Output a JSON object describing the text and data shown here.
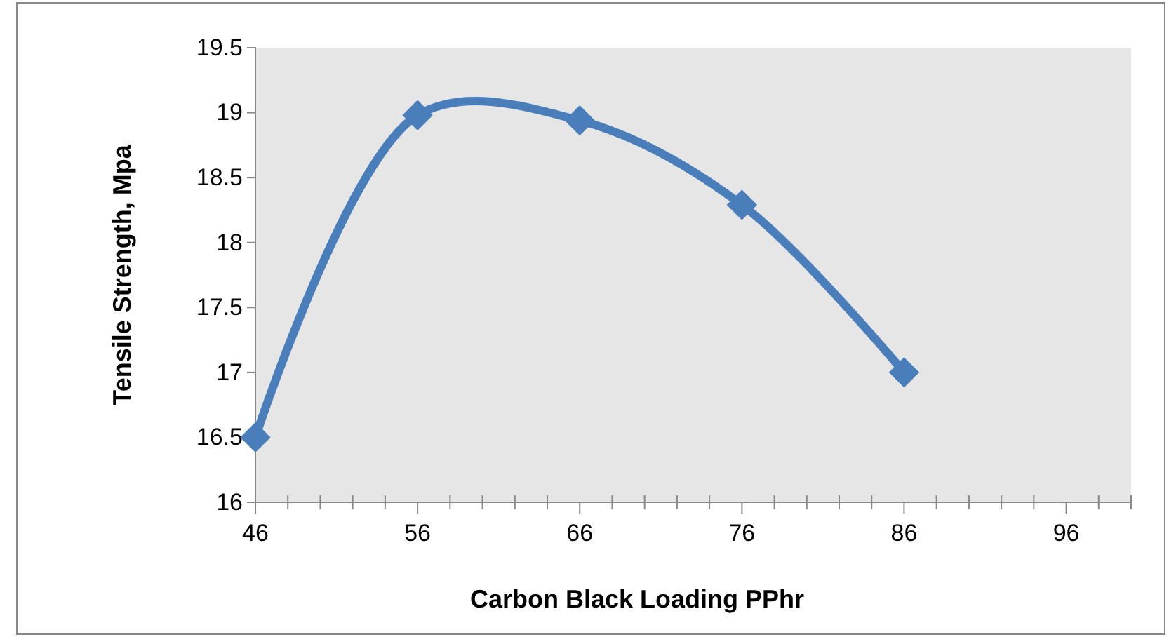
{
  "chart_data": {
    "type": "line",
    "xlabel": "Carbon Black Loading PPhr",
    "ylabel": "Tensile Strength, Mpa",
    "x": [
      46,
      56,
      66,
      76,
      86
    ],
    "series": [
      {
        "color": "#4a7ebb",
        "values": [
          16.5,
          18.98,
          18.94,
          18.29,
          17.0
        ]
      }
    ],
    "xlim": [
      46,
      100
    ],
    "xticks": [
      46,
      {
        "value": 48,
        "label": null
      },
      {
        "value": 50,
        "label": null
      },
      {
        "value": 52,
        "label": null
      },
      {
        "value": 54,
        "label": null
      },
      56,
      {
        "value": 58,
        "label": null
      },
      {
        "value": 60,
        "label": null
      },
      {
        "value": 62,
        "label": null
      },
      {
        "value": 64,
        "label": null
      },
      66,
      {
        "value": 68,
        "label": null
      },
      {
        "value": 70,
        "label": null
      },
      {
        "value": 72,
        "label": null
      },
      {
        "value": 74,
        "label": null
      },
      76,
      {
        "value": 78,
        "label": null
      },
      {
        "value": 80,
        "label": null
      },
      {
        "value": 82,
        "label": null
      },
      {
        "value": 84,
        "label": null
      },
      86,
      {
        "value": 88,
        "label": null
      },
      {
        "value": 90,
        "label": null
      },
      {
        "value": 92,
        "label": null
      },
      {
        "value": 94,
        "label": null
      },
      96,
      {
        "value": 98,
        "label": null
      },
      {
        "value": 100,
        "label": null
      }
    ],
    "ylim": [
      16,
      19.5
    ],
    "yticks": [
      16,
      16.5,
      17,
      17.5,
      18,
      18.5,
      19,
      19.5
    ],
    "grid": false,
    "marker": "diamond",
    "line_style": "solid"
  }
}
